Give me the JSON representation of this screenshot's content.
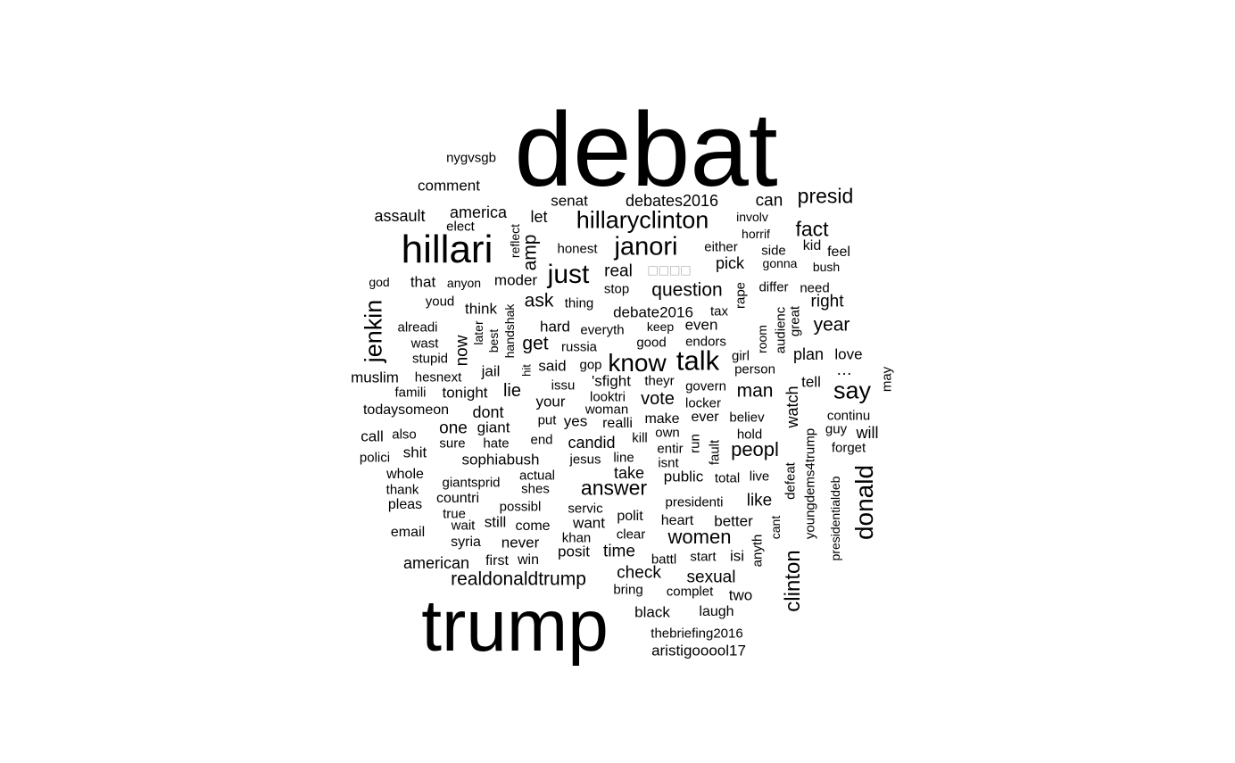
{
  "chart_data": {
    "type": "wordcloud",
    "text_color": "#000000",
    "background": "#ffffff",
    "words": [
      {
        "text": "debat",
        "rank": 1,
        "vertical": false
      },
      {
        "text": "trump",
        "rank": 2,
        "vertical": false
      },
      {
        "text": "hillari",
        "rank": 3,
        "vertical": false
      },
      {
        "text": "know",
        "rank": 4,
        "vertical": false
      },
      {
        "text": "talk",
        "rank": 4,
        "vertical": false
      },
      {
        "text": "janori",
        "rank": 4,
        "vertical": false
      },
      {
        "text": "just",
        "rank": 4,
        "vertical": false
      },
      {
        "text": "hillaryclinton",
        "rank": 5,
        "vertical": false
      },
      {
        "text": "jenkin",
        "rank": 5,
        "vertical": true
      },
      {
        "text": "donald",
        "rank": 5,
        "vertical": true
      },
      {
        "text": "clinton",
        "rank": 5,
        "vertical": true
      },
      {
        "text": "say",
        "rank": 5,
        "vertical": false
      },
      {
        "text": "presid",
        "rank": 6,
        "vertical": false
      },
      {
        "text": "fact",
        "rank": 6,
        "vertical": false
      },
      {
        "text": "answer",
        "rank": 6,
        "vertical": false
      },
      {
        "text": "women",
        "rank": 6,
        "vertical": false
      },
      {
        "text": "peopl",
        "rank": 6,
        "vertical": false
      },
      {
        "text": "question",
        "rank": 6,
        "vertical": false
      },
      {
        "text": "man",
        "rank": 6,
        "vertical": false
      },
      {
        "text": "realdonaldtrump",
        "rank": 6,
        "vertical": false
      },
      {
        "text": "amp",
        "rank": 6,
        "vertical": true
      },
      {
        "text": "year",
        "rank": 7,
        "vertical": false
      },
      {
        "text": "right",
        "rank": 7,
        "vertical": false
      },
      {
        "text": "ask",
        "rank": 7,
        "vertical": false
      },
      {
        "text": "get",
        "rank": 7,
        "vertical": false
      },
      {
        "text": "lie",
        "rank": 7,
        "vertical": false
      },
      {
        "text": "vote",
        "rank": 7,
        "vertical": false
      },
      {
        "text": "now",
        "rank": 7,
        "vertical": true
      },
      {
        "text": "sexual",
        "rank": 7,
        "vertical": false
      },
      {
        "text": "check",
        "rank": 7,
        "vertical": false
      },
      {
        "text": "time",
        "rank": 7,
        "vertical": false
      },
      {
        "text": "like",
        "rank": 7,
        "vertical": false
      },
      {
        "text": "american",
        "rank": 7,
        "vertical": false
      },
      {
        "text": "can",
        "rank": 7,
        "vertical": false
      },
      {
        "text": "debates2016",
        "rank": 7,
        "vertical": false
      },
      {
        "text": "america",
        "rank": 7,
        "vertical": false
      },
      {
        "text": "assault",
        "rank": 7,
        "vertical": false
      },
      {
        "text": "let",
        "rank": 7,
        "vertical": false
      },
      {
        "text": "dont",
        "rank": 7,
        "vertical": false
      },
      {
        "text": "one",
        "rank": 7,
        "vertical": false
      },
      {
        "text": "candid",
        "rank": 7,
        "vertical": false
      },
      {
        "text": "sophiabush",
        "rank": 7,
        "vertical": false
      },
      {
        "text": "take",
        "rank": 7,
        "vertical": false
      },
      {
        "text": "watch",
        "rank": 7,
        "vertical": true
      },
      {
        "text": "will",
        "rank": 7,
        "vertical": false
      },
      {
        "text": "debate2016",
        "rank": 8,
        "vertical": false
      },
      {
        "text": "real",
        "rank": 8,
        "vertical": false
      },
      {
        "text": "□□□□",
        "rank": 8,
        "vertical": false,
        "glyph": true
      },
      {
        "text": "pick",
        "rank": 8,
        "vertical": false
      },
      {
        "text": "senat",
        "rank": 8,
        "vertical": false
      },
      {
        "text": "comment",
        "rank": 8,
        "vertical": false
      },
      {
        "text": "nygvsgb",
        "rank": 9,
        "vertical": false
      },
      {
        "text": "plan",
        "rank": 8,
        "vertical": false
      },
      {
        "text": "love",
        "rank": 8,
        "vertical": false
      },
      {
        "text": "tell",
        "rank": 8,
        "vertical": false
      },
      {
        "text": "said",
        "rank": 8,
        "vertical": false
      },
      {
        "text": "think",
        "rank": 8,
        "vertical": false
      },
      {
        "text": "tonight",
        "rank": 8,
        "vertical": false
      },
      {
        "text": "moder",
        "rank": 8,
        "vertical": false
      },
      {
        "text": "that",
        "rank": 8,
        "vertical": false
      },
      {
        "text": "even",
        "rank": 8,
        "vertical": false
      },
      {
        "text": "hard",
        "rank": 8,
        "vertical": false
      },
      {
        "text": "jail",
        "rank": 8,
        "vertical": false
      },
      {
        "text": "shit",
        "rank": 8,
        "vertical": false
      },
      {
        "text": "call",
        "rank": 8,
        "vertical": false
      },
      {
        "text": "muslim",
        "rank": 8,
        "vertical": false
      },
      {
        "text": "want",
        "rank": 8,
        "vertical": false
      },
      {
        "text": "never",
        "rank": 8,
        "vertical": false
      },
      {
        "text": "still",
        "rank": 8,
        "vertical": false
      },
      {
        "text": "better",
        "rank": 8,
        "vertical": false
      },
      {
        "text": "two",
        "rank": 8,
        "vertical": false
      },
      {
        "text": "black",
        "rank": 8,
        "vertical": false
      },
      {
        "text": "aristigooool17",
        "rank": 8,
        "vertical": false
      },
      {
        "text": "giant",
        "rank": 8,
        "vertical": false
      },
      {
        "text": "yes",
        "rank": 8,
        "vertical": false
      },
      {
        "text": "posit",
        "rank": 8,
        "vertical": false
      },
      {
        "text": "first",
        "rank": 8,
        "vertical": false
      },
      {
        "text": "public",
        "rank": 8,
        "vertical": false
      },
      {
        "text": "countri",
        "rank": 8,
        "vertical": false
      },
      {
        "text": "'sfight",
        "rank": 8,
        "vertical": false
      },
      {
        "text": "make",
        "rank": 8,
        "vertical": false
      },
      {
        "text": "ever",
        "rank": 8,
        "vertical": false
      },
      {
        "text": "your",
        "rank": 8,
        "vertical": false
      },
      {
        "text": "isi",
        "rank": 8,
        "vertical": false
      },
      {
        "text": "elect",
        "rank": 9,
        "vertical": false
      },
      {
        "text": "honest",
        "rank": 9,
        "vertical": false
      },
      {
        "text": "stop",
        "rank": 9,
        "vertical": false
      },
      {
        "text": "thing",
        "rank": 9,
        "vertical": false
      },
      {
        "text": "everyth",
        "rank": 9,
        "vertical": false
      },
      {
        "text": "russia",
        "rank": 9,
        "vertical": false
      },
      {
        "text": "keep",
        "rank": 9,
        "vertical": false
      },
      {
        "text": "good",
        "rank": 9,
        "vertical": false
      },
      {
        "text": "endors",
        "rank": 9,
        "vertical": false
      },
      {
        "text": "tax",
        "rank": 9,
        "vertical": false
      },
      {
        "text": "either",
        "rank": 9,
        "vertical": false
      },
      {
        "text": "involv",
        "rank": 9,
        "vertical": false
      },
      {
        "text": "horrif",
        "rank": 9,
        "vertical": false
      },
      {
        "text": "side",
        "rank": 9,
        "vertical": false
      },
      {
        "text": "gonna",
        "rank": 9,
        "vertical": false
      },
      {
        "text": "kid",
        "rank": 9,
        "vertical": false
      },
      {
        "text": "feel",
        "rank": 9,
        "vertical": false
      },
      {
        "text": "bush",
        "rank": 9,
        "vertical": false
      },
      {
        "text": "differ",
        "rank": 9,
        "vertical": false
      },
      {
        "text": "need",
        "rank": 9,
        "vertical": false
      },
      {
        "text": "god",
        "rank": 9,
        "vertical": false
      },
      {
        "text": "anyon",
        "rank": 9,
        "vertical": false
      },
      {
        "text": "youd",
        "rank": 9,
        "vertical": false
      },
      {
        "text": "alreadi",
        "rank": 9,
        "vertical": false
      },
      {
        "text": "wast",
        "rank": 9,
        "vertical": false
      },
      {
        "text": "stupid",
        "rank": 9,
        "vertical": false
      },
      {
        "text": "hesnext",
        "rank": 9,
        "vertical": false
      },
      {
        "text": "famili",
        "rank": 9,
        "vertical": false
      },
      {
        "text": "todaysomeon",
        "rank": 9,
        "vertical": false
      },
      {
        "text": "also",
        "rank": 9,
        "vertical": false
      },
      {
        "text": "sure",
        "rank": 9,
        "vertical": false
      },
      {
        "text": "hate",
        "rank": 9,
        "vertical": false
      },
      {
        "text": "polici",
        "rank": 9,
        "vertical": false
      },
      {
        "text": "whole",
        "rank": 9,
        "vertical": false
      },
      {
        "text": "thank",
        "rank": 9,
        "vertical": false
      },
      {
        "text": "giantsprid",
        "rank": 9,
        "vertical": false
      },
      {
        "text": "pleas",
        "rank": 9,
        "vertical": false
      },
      {
        "text": "true",
        "rank": 9,
        "vertical": false
      },
      {
        "text": "wait",
        "rank": 9,
        "vertical": false
      },
      {
        "text": "email",
        "rank": 9,
        "vertical": false
      },
      {
        "text": "syria",
        "rank": 9,
        "vertical": false
      },
      {
        "text": "gop",
        "rank": 9,
        "vertical": false
      },
      {
        "text": "issu",
        "rank": 9,
        "vertical": false
      },
      {
        "text": "looktri",
        "rank": 9,
        "vertical": false
      },
      {
        "text": "woman",
        "rank": 9,
        "vertical": false
      },
      {
        "text": "put",
        "rank": 9,
        "vertical": false
      },
      {
        "text": "realli",
        "rank": 9,
        "vertical": false
      },
      {
        "text": "end",
        "rank": 9,
        "vertical": false
      },
      {
        "text": "kill",
        "rank": 9,
        "vertical": false
      },
      {
        "text": "jesus",
        "rank": 9,
        "vertical": false
      },
      {
        "text": "line",
        "rank": 9,
        "vertical": false
      },
      {
        "text": "actual",
        "rank": 9,
        "vertical": false
      },
      {
        "text": "shes",
        "rank": 9,
        "vertical": false
      },
      {
        "text": "possibl",
        "rank": 9,
        "vertical": false
      },
      {
        "text": "servic",
        "rank": 9,
        "vertical": false
      },
      {
        "text": "come",
        "rank": 9,
        "vertical": false
      },
      {
        "text": "khan",
        "rank": 9,
        "vertical": false
      },
      {
        "text": "win",
        "rank": 9,
        "vertical": false
      },
      {
        "text": "polit",
        "rank": 9,
        "vertical": false
      },
      {
        "text": "clear",
        "rank": 9,
        "vertical": false
      },
      {
        "text": "bring",
        "rank": 9,
        "vertical": false
      },
      {
        "text": "theyr",
        "rank": 9,
        "vertical": false
      },
      {
        "text": "govern",
        "rank": 9,
        "vertical": false
      },
      {
        "text": "locker",
        "rank": 9,
        "vertical": false
      },
      {
        "text": "own",
        "rank": 9,
        "vertical": false
      },
      {
        "text": "entir",
        "rank": 9,
        "vertical": false
      },
      {
        "text": "isnt",
        "rank": 9,
        "vertical": false
      },
      {
        "text": "presidenti",
        "rank": 9,
        "vertical": false
      },
      {
        "text": "heart",
        "rank": 9,
        "vertical": false
      },
      {
        "text": "battl",
        "rank": 9,
        "vertical": false
      },
      {
        "text": "start",
        "rank": 9,
        "vertical": false
      },
      {
        "text": "complet",
        "rank": 9,
        "vertical": false
      },
      {
        "text": "laugh",
        "rank": 9,
        "vertical": false
      },
      {
        "text": "thebriefing2016",
        "rank": 9,
        "vertical": false
      },
      {
        "text": "person",
        "rank": 9,
        "vertical": false
      },
      {
        "text": "girl",
        "rank": 9,
        "vertical": false
      },
      {
        "text": "believ",
        "rank": 9,
        "vertical": false
      },
      {
        "text": "hold",
        "rank": 9,
        "vertical": false
      },
      {
        "text": "total",
        "rank": 9,
        "vertical": false
      },
      {
        "text": "live",
        "rank": 9,
        "vertical": false
      },
      {
        "text": "…",
        "rank": 9,
        "vertical": false
      },
      {
        "text": "continu",
        "rank": 9,
        "vertical": false
      },
      {
        "text": "guy",
        "rank": 9,
        "vertical": false
      },
      {
        "text": "forget",
        "rank": 9,
        "vertical": false
      },
      {
        "text": "reflect",
        "rank": 9,
        "vertical": true
      },
      {
        "text": "handshak",
        "rank": 9,
        "vertical": true
      },
      {
        "text": "best",
        "rank": 9,
        "vertical": true
      },
      {
        "text": "later",
        "rank": 9,
        "vertical": true
      },
      {
        "text": "hit",
        "rank": 9,
        "vertical": true
      },
      {
        "text": "rape",
        "rank": 9,
        "vertical": true
      },
      {
        "text": "room",
        "rank": 9,
        "vertical": true
      },
      {
        "text": "audienc",
        "rank": 9,
        "vertical": true
      },
      {
        "text": "great",
        "rank": 9,
        "vertical": true
      },
      {
        "text": "may",
        "rank": 9,
        "vertical": true
      },
      {
        "text": "run",
        "rank": 9,
        "vertical": true
      },
      {
        "text": "fault",
        "rank": 9,
        "vertical": true
      },
      {
        "text": "defeat",
        "rank": 9,
        "vertical": true
      },
      {
        "text": "youngdems4trump",
        "rank": 9,
        "vertical": true
      },
      {
        "text": "presidentialdeb",
        "rank": 9,
        "vertical": true
      },
      {
        "text": "cant",
        "rank": 9,
        "vertical": true
      },
      {
        "text": "anyth",
        "rank": 9,
        "vertical": true
      }
    ]
  }
}
